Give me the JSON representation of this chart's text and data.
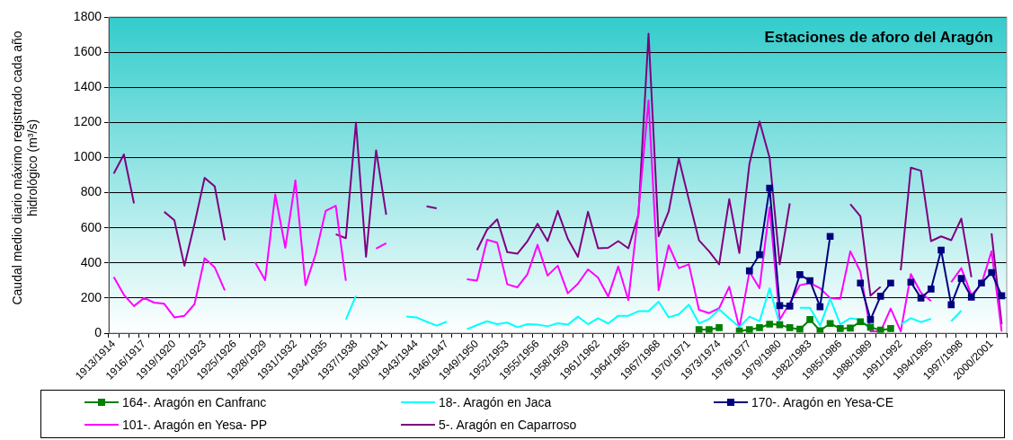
{
  "chart_data": {
    "type": "line",
    "title": "Estaciones de aforo del Aragón",
    "ylabel": "Caudal medio diario máximo registrado cada año hidrológico (m³/s)",
    "categories": [
      "1913/1914",
      null,
      null,
      "1916/1917",
      null,
      null,
      "1919/1920",
      null,
      null,
      "1922/1923",
      null,
      null,
      "1925/1926",
      null,
      null,
      "1928/1929",
      null,
      null,
      "1931/1932",
      null,
      null,
      "1934/1935",
      null,
      null,
      "1937/1938",
      null,
      null,
      "1940/1941",
      null,
      null,
      "1943/1944",
      null,
      null,
      "1946/1947",
      null,
      null,
      "1949/1950",
      null,
      null,
      "1952/1953",
      null,
      null,
      "1955/1956",
      null,
      null,
      "1958/1959",
      null,
      null,
      "1961/1962",
      null,
      null,
      "1964/1965",
      null,
      null,
      "1967/1968",
      null,
      null,
      "1970/1971",
      null,
      null,
      "1973/1974",
      null,
      null,
      "1976/1977",
      null,
      null,
      "1979/1980",
      null,
      null,
      "1982/1983",
      null,
      null,
      "1985/1986",
      null,
      null,
      "1988/1989",
      null,
      null,
      "1991/1992",
      null,
      null,
      "1994/1995",
      null,
      null,
      "1997/1998",
      null,
      null,
      "2000/2001",
      null
    ],
    "series": [
      {
        "name": "164-. Aragón en Canfranc",
        "color": "#008000",
        "marker": "square",
        "values": [
          null,
          null,
          null,
          null,
          null,
          null,
          null,
          null,
          null,
          null,
          null,
          null,
          null,
          null,
          null,
          null,
          null,
          null,
          null,
          null,
          null,
          null,
          null,
          null,
          null,
          null,
          null,
          null,
          null,
          null,
          null,
          null,
          null,
          null,
          null,
          null,
          null,
          null,
          null,
          null,
          null,
          null,
          null,
          null,
          null,
          null,
          null,
          null,
          null,
          null,
          null,
          null,
          null,
          null,
          null,
          null,
          null,
          null,
          20,
          20,
          31,
          null,
          12,
          20,
          31,
          51,
          48,
          31,
          22,
          77,
          14,
          55,
          26,
          29,
          65,
          34,
          17,
          26,
          null,
          null,
          null,
          null,
          null,
          null,
          null,
          null,
          null,
          null,
          null
        ]
      },
      {
        "name": "18-. Aragón en Jaca",
        "color": "#00ffff",
        "marker": "none",
        "values": [
          null,
          null,
          null,
          null,
          null,
          null,
          null,
          null,
          null,
          null,
          null,
          null,
          null,
          null,
          null,
          null,
          null,
          null,
          null,
          null,
          null,
          null,
          null,
          77,
          213,
          null,
          null,
          null,
          null,
          94,
          90,
          65,
          43,
          65,
          null,
          22,
          46,
          68,
          51,
          60,
          34,
          51,
          49,
          39,
          56,
          48,
          94,
          51,
          85,
          55,
          99,
          99,
          125,
          125,
          179,
          90,
          107,
          162,
          56,
          80,
          136,
          85,
          34,
          94,
          68,
          256,
          51,
          null,
          145,
          145,
          43,
          196,
          51,
          85,
          77,
          22,
          null,
          null,
          51,
          85,
          63,
          82,
          null,
          68,
          128,
          null,
          null,
          null,
          null
        ]
      },
      {
        "name": "170-. Aragón en Yesa-CE",
        "color": "#000080",
        "marker": "square",
        "values": [
          null,
          null,
          null,
          null,
          null,
          null,
          null,
          null,
          null,
          null,
          null,
          null,
          null,
          null,
          null,
          null,
          null,
          null,
          null,
          null,
          null,
          null,
          null,
          null,
          null,
          null,
          null,
          null,
          null,
          null,
          null,
          null,
          null,
          null,
          null,
          null,
          null,
          null,
          null,
          null,
          null,
          null,
          null,
          null,
          null,
          null,
          null,
          null,
          null,
          null,
          null,
          null,
          null,
          null,
          null,
          null,
          null,
          null,
          null,
          null,
          null,
          null,
          null,
          355,
          447,
          826,
          157,
          154,
          333,
          299,
          150,
          551,
          null,
          null,
          285,
          77,
          210,
          285,
          null,
          290,
          200,
          251,
          473,
          162,
          311,
          205,
          285,
          345,
          213
        ]
      },
      {
        "name": "101-. Aragón en Yesa- PP",
        "color": "#ff00ff",
        "marker": "none",
        "values": [
          319,
          218,
          154,
          200,
          174,
          167,
          90,
          99,
          165,
          427,
          375,
          244,
          null,
          null,
          404,
          302,
          790,
          486,
          870,
          273,
          449,
          696,
          725,
          299,
          null,
          null,
          481,
          512,
          null,
          null,
          null,
          null,
          null,
          null,
          null,
          307,
          299,
          532,
          515,
          278,
          261,
          336,
          503,
          328,
          384,
          227,
          281,
          363,
          316,
          208,
          380,
          188,
          691,
          1326,
          244,
          500,
          370,
          392,
          133,
          114,
          142,
          264,
          29,
          350,
          256,
          717,
          77,
          171,
          273,
          285,
          256,
          200,
          196,
          466,
          350,
          10,
          10,
          140,
          10,
          336,
          230,
          183,
          null,
          290,
          370,
          217,
          281,
          466,
          10
        ]
      },
      {
        "name": "5-. Aragón en Caparroso",
        "color": "#800080",
        "marker": "none",
        "values": [
          909,
          1018,
          739,
          null,
          null,
          691,
          643,
          384,
          623,
          884,
          836,
          529,
          null,
          null,
          null,
          null,
          null,
          null,
          null,
          null,
          null,
          null,
          563,
          541,
          1199,
          435,
          1041,
          674,
          null,
          null,
          null,
          722,
          711,
          null,
          null,
          null,
          473,
          589,
          648,
          461,
          452,
          524,
          623,
          524,
          696,
          537,
          435,
          691,
          483,
          486,
          524,
          483,
          674,
          1706,
          551,
          694,
          995,
          759,
          529,
          466,
          392,
          763,
          456,
          964,
          1206,
          998,
          392,
          739,
          null,
          null,
          null,
          null,
          null,
          734,
          665,
          213,
          264,
          null,
          358,
          942,
          925,
          524,
          551,
          529,
          652,
          319,
          null,
          568,
          51
        ]
      }
    ],
    "ylim": [
      0,
      1800
    ],
    "yticks": [
      0,
      200,
      400,
      600,
      800,
      1000,
      1200,
      1400,
      1600,
      1800
    ],
    "grid": "y",
    "legend": "bottom"
  }
}
